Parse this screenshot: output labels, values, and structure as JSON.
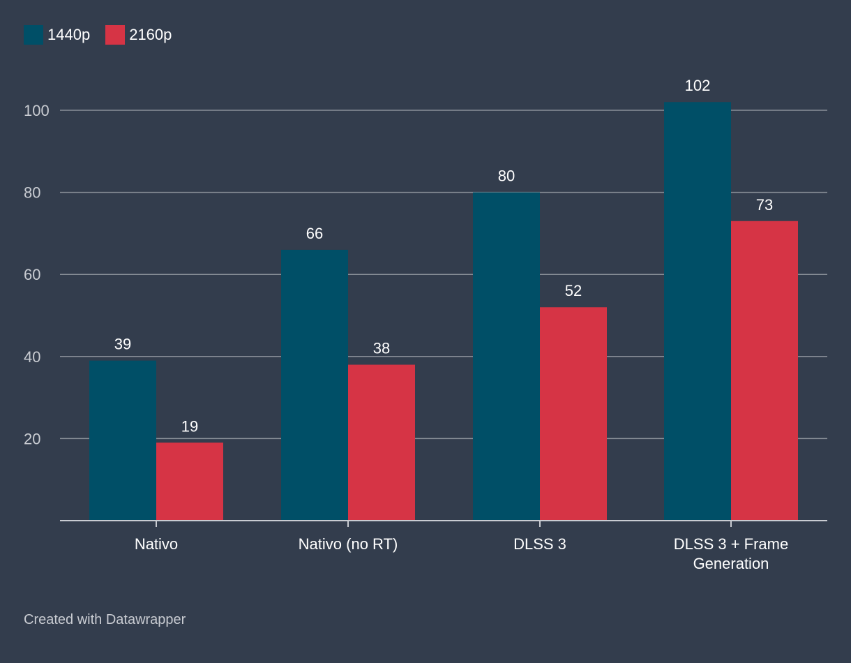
{
  "colors": {
    "background": "#333d4d",
    "series_1440p": "#004f67",
    "series_2160p": "#d63445",
    "grid": "#8a9099",
    "axis": "#c9ccd2"
  },
  "legend": [
    {
      "label": "1440p",
      "color": "#004f67"
    },
    {
      "label": "2160p",
      "color": "#d63445"
    }
  ],
  "footer": {
    "credit": "Created with Datawrapper"
  },
  "chart_data": {
    "type": "bar",
    "categories": [
      [
        "Nativo"
      ],
      [
        "Nativo (no RT)"
      ],
      [
        "DLSS 3"
      ],
      [
        "DLSS 3 + Frame",
        "Generation"
      ]
    ],
    "series": [
      {
        "name": "1440p",
        "values": [
          39,
          66,
          80,
          102
        ],
        "color": "#004f67"
      },
      {
        "name": "2160p",
        "values": [
          19,
          38,
          52,
          73
        ],
        "color": "#d63445"
      }
    ],
    "ylim": [
      0,
      100
    ],
    "yticks": [
      20,
      40,
      60,
      80,
      100
    ],
    "grid": true,
    "legend_position": "top-left"
  }
}
